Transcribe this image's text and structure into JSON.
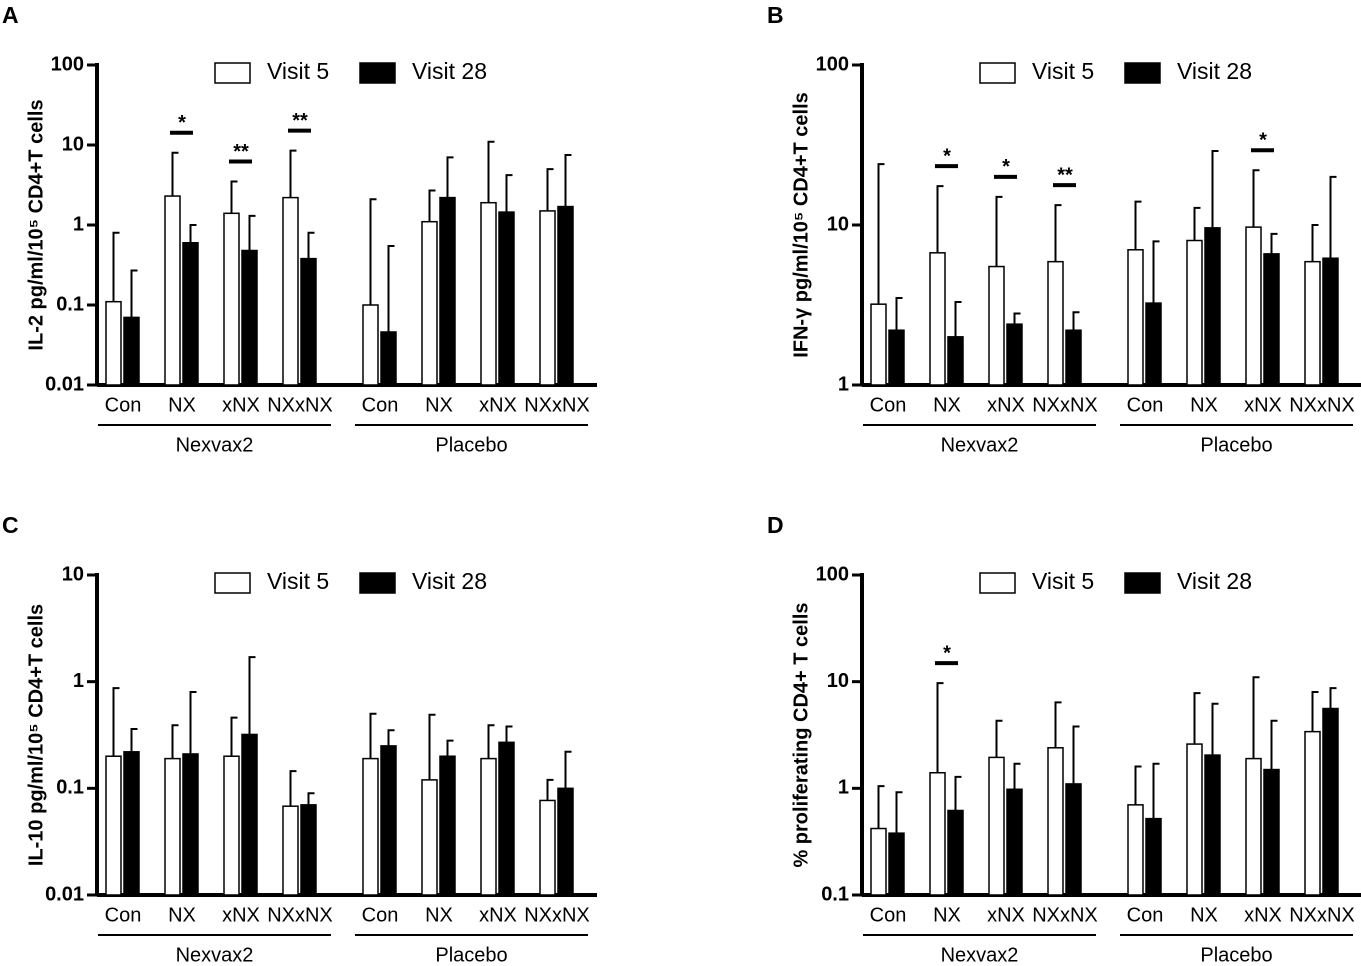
{
  "chart_data": [
    {
      "type": "bar",
      "panel": "A",
      "ylabel": "IL-2 pg/ml/10⁵ CD4+T cells",
      "log_scale": true,
      "legend": "top",
      "ylim": [
        0.01,
        100
      ],
      "yticks": [
        0.01,
        0.1,
        1,
        10,
        100
      ],
      "categories": [
        "Con",
        "NX",
        "xNX",
        "NXxNX",
        "Con",
        "NX",
        "xNX",
        "NXxNX"
      ],
      "groups": [
        "Nexvax2",
        "Placebo"
      ],
      "series": [
        {
          "name": "Visit 5",
          "color": "#ffffff",
          "values": [
            0.11,
            2.3,
            1.4,
            2.2,
            0.1,
            1.1,
            1.9,
            1.5
          ],
          "errors": [
            0.69,
            5.7,
            2.1,
            6.3,
            2.0,
            1.6,
            9.1,
            3.5
          ]
        },
        {
          "name": "Visit 28",
          "color": "#000000",
          "values": [
            0.07,
            0.6,
            0.48,
            0.38,
            0.046,
            2.2,
            1.45,
            1.7
          ],
          "errors": [
            0.2,
            0.4,
            0.82,
            0.42,
            0.5,
            4.8,
            2.75,
            5.8
          ]
        }
      ],
      "significance": [
        null,
        "*",
        "**",
        "**",
        null,
        null,
        null,
        null
      ]
    },
    {
      "type": "bar",
      "panel": "B",
      "ylabel": "IFN-γ pg/ml/10⁵ CD4+T cells",
      "log_scale": true,
      "legend": "top",
      "ylim": [
        1,
        100
      ],
      "yticks": [
        1,
        10,
        100
      ],
      "categories": [
        "Con",
        "NX",
        "xNX",
        "NXxNX",
        "Con",
        "NX",
        "xNX",
        "NXxNX"
      ],
      "groups": [
        "Nexvax2",
        "Placebo"
      ],
      "series": [
        {
          "name": "Visit 5",
          "color": "#ffffff",
          "values": [
            3.2,
            6.7,
            5.5,
            5.9,
            7,
            8,
            9.7,
            5.9
          ],
          "errors": [
            20.8,
            10.8,
            9.5,
            7.4,
            7,
            4.8,
            12.3,
            4.1
          ]
        },
        {
          "name": "Visit 28",
          "color": "#000000",
          "values": [
            2.2,
            2.0,
            2.4,
            2.2,
            3.25,
            9.6,
            6.6,
            6.2
          ],
          "errors": [
            1.3,
            1.3,
            0.4,
            0.65,
            4.65,
            19.4,
            2.2,
            13.8
          ]
        }
      ],
      "significance": [
        null,
        "*",
        "*",
        "**",
        null,
        null,
        "*",
        null
      ]
    },
    {
      "type": "bar",
      "panel": "C",
      "ylabel": "IL-10 pg/ml/10⁵ CD4+T cells",
      "log_scale": true,
      "legend": "top",
      "ylim": [
        0.01,
        10
      ],
      "yticks": [
        0.01,
        0.1,
        1,
        10
      ],
      "categories": [
        "Con",
        "NX",
        "xNX",
        "NXxNX",
        "Con",
        "NX",
        "xNX",
        "NXxNX"
      ],
      "groups": [
        "Nexvax2",
        "Placebo"
      ],
      "series": [
        {
          "name": "Visit 5",
          "color": "#ffffff",
          "values": [
            0.2,
            0.19,
            0.2,
            0.068,
            0.19,
            0.12,
            0.19,
            0.077
          ],
          "errors": [
            0.67,
            0.2,
            0.26,
            0.077,
            0.31,
            0.37,
            0.2,
            0.043
          ]
        },
        {
          "name": "Visit 28",
          "color": "#000000",
          "values": [
            0.22,
            0.21,
            0.32,
            0.07,
            0.25,
            0.2,
            0.27,
            0.1
          ],
          "errors": [
            0.14,
            0.59,
            1.38,
            0.02,
            0.1,
            0.08,
            0.11,
            0.12
          ]
        }
      ],
      "significance": [
        null,
        null,
        null,
        null,
        null,
        null,
        null,
        null
      ]
    },
    {
      "type": "bar",
      "panel": "D",
      "ylabel": "% proliferating CD4+ T cells",
      "log_scale": true,
      "legend": "top",
      "ylim": [
        0.1,
        100
      ],
      "yticks": [
        0.1,
        1,
        10,
        100
      ],
      "categories": [
        "Con",
        "NX",
        "xNX",
        "NXxNX",
        "Con",
        "NX",
        "xNX",
        "NXxNX"
      ],
      "groups": [
        "Nexvax2",
        "Placebo"
      ],
      "series": [
        {
          "name": "Visit 5",
          "color": "#ffffff",
          "values": [
            0.42,
            1.4,
            1.95,
            2.4,
            0.7,
            2.6,
            1.9,
            3.4
          ],
          "errors": [
            0.63,
            8.3,
            2.35,
            4,
            0.9,
            5.2,
            9.1,
            4.6
          ]
        },
        {
          "name": "Visit 28",
          "color": "#000000",
          "values": [
            0.38,
            0.62,
            0.98,
            1.1,
            0.52,
            2.05,
            1.5,
            5.6
          ],
          "errors": [
            0.54,
            0.66,
            0.72,
            2.7,
            1.18,
            4.15,
            2.8,
            3.1
          ]
        }
      ],
      "significance": [
        null,
        "*",
        null,
        null,
        null,
        null,
        null,
        null
      ]
    }
  ]
}
